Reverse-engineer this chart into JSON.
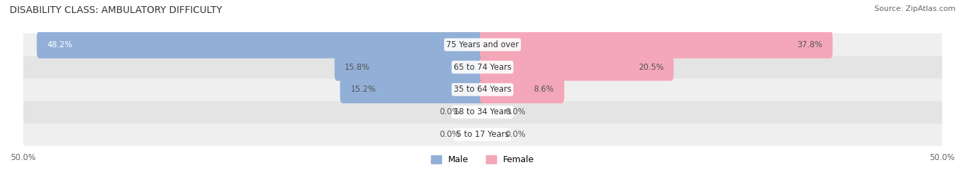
{
  "title": "DISABILITY CLASS: AMBULATORY DIFFICULTY",
  "source": "Source: ZipAtlas.com",
  "categories": [
    "5 to 17 Years",
    "18 to 34 Years",
    "35 to 64 Years",
    "65 to 74 Years",
    "75 Years and over"
  ],
  "male_values": [
    0.0,
    0.0,
    15.2,
    15.8,
    48.2
  ],
  "female_values": [
    0.0,
    0.0,
    8.6,
    20.5,
    37.8
  ],
  "male_color": "#92afd7",
  "female_color": "#f4a7b9",
  "row_bg_colors": [
    "#efefef",
    "#e4e4e4"
  ],
  "axis_max": 50.0,
  "label_color_dark": "#555555",
  "label_color_white": "#ffffff",
  "title_fontsize": 10,
  "source_fontsize": 8,
  "tick_fontsize": 8.5,
  "bar_label_fontsize": 8.5,
  "category_fontsize": 8.5,
  "legend_fontsize": 9
}
